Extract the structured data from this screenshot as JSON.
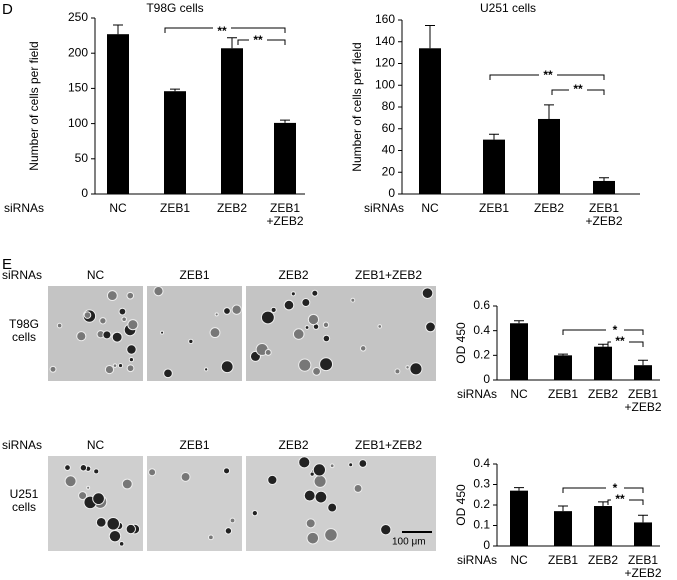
{
  "panels": [
    "D",
    "E"
  ],
  "image_grid": {
    "row_header": "siRNAs",
    "columns": [
      "NC",
      "ZEB1",
      "ZEB2",
      "ZEB1+ZEB2"
    ],
    "rows": [
      "T98G\ncells",
      "U251\ncells"
    ],
    "scale_bar": "100 μm"
  },
  "chart_data": [
    {
      "type": "bar",
      "title": "T98G cells",
      "ylabel": "Number of cells per field",
      "xlabel": "siRNAs",
      "categories": [
        "NC",
        "ZEB1",
        "ZEB2",
        "ZEB1\n+ZEB2"
      ],
      "values": [
        227,
        146,
        207,
        101
      ],
      "errors": [
        13,
        3,
        15,
        4
      ],
      "color": "#000000",
      "ylim": [
        0,
        250
      ],
      "yticks": [
        0,
        50,
        100,
        150,
        200,
        250
      ],
      "annotations": [
        "**",
        "**"
      ]
    },
    {
      "type": "bar",
      "title": "U251 cells",
      "ylabel": "Number of cells per field",
      "xlabel": "siRNAs",
      "categories": [
        "NC",
        "ZEB1",
        "ZEB2",
        "ZEB1\n+ZEB2"
      ],
      "values": [
        134,
        50,
        69,
        12
      ],
      "errors": [
        21,
        5,
        13,
        3
      ],
      "color": "#000000",
      "ylim": [
        0,
        160
      ],
      "yticks": [
        0,
        20,
        40,
        60,
        80,
        100,
        120,
        140,
        160
      ],
      "annotations": [
        "**",
        "**"
      ]
    },
    {
      "type": "bar",
      "ylabel": "OD 450",
      "xlabel": "siRNAs",
      "categories": [
        "NC",
        "ZEB1",
        "ZEB2",
        "ZEB1\n+ZEB2"
      ],
      "values": [
        0.46,
        0.2,
        0.27,
        0.12
      ],
      "errors": [
        0.02,
        0.01,
        0.02,
        0.04
      ],
      "color": "#000000",
      "ylim": [
        0,
        0.6
      ],
      "yticks": [
        0,
        0.2,
        0.4,
        0.6
      ],
      "annotations": [
        "*",
        "**"
      ]
    },
    {
      "type": "bar",
      "ylabel": "OD 450",
      "xlabel": "siRNAs",
      "categories": [
        "NC",
        "ZEB1",
        "ZEB2",
        "ZEB1\n+ZEB2"
      ],
      "values": [
        0.27,
        0.17,
        0.195,
        0.115
      ],
      "errors": [
        0.015,
        0.025,
        0.02,
        0.035
      ],
      "color": "#000000",
      "ylim": [
        0,
        0.4
      ],
      "yticks": [
        0,
        0.1,
        0.2,
        0.3,
        0.4
      ],
      "annotations": [
        "*",
        "**"
      ]
    }
  ]
}
